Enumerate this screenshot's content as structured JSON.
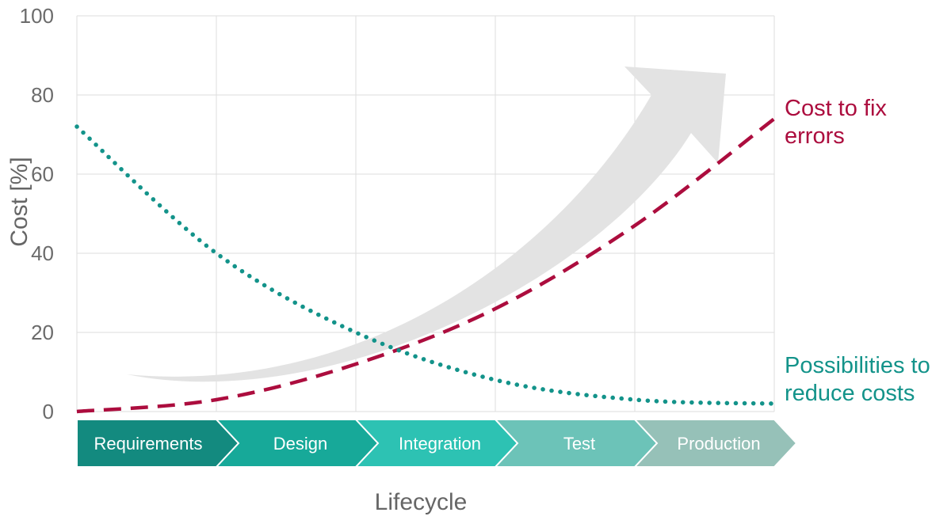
{
  "chart_data": {
    "type": "line",
    "title": "",
    "xlabel": "Lifecycle",
    "ylabel": "Cost [%]",
    "ylim": [
      0,
      100
    ],
    "yticks": [
      0,
      20,
      40,
      60,
      80,
      100
    ],
    "xlim": [
      0,
      5
    ],
    "grid": true,
    "legend": "direct labels at right",
    "stages": [
      "Requirements",
      "Design",
      "Integration",
      "Test",
      "Production"
    ],
    "stage_colors": [
      "#138a7f",
      "#17a999",
      "#2dc2b3",
      "#6cc3b8",
      "#96c1b8"
    ],
    "series": [
      {
        "name": "Cost to fix errors",
        "label_lines": [
          "Cost to fix",
          "errors"
        ],
        "color": "#ac0d3e",
        "style": "dashed",
        "x": [
          0,
          1,
          2,
          3,
          4,
          5
        ],
        "values": [
          0,
          3,
          12,
          26,
          47,
          74
        ]
      },
      {
        "name": "Possibilities to reduce costs",
        "label_lines": [
          "Possibilities to",
          "reduce costs"
        ],
        "color": "#13938a",
        "style": "dotted",
        "x": [
          0,
          1,
          2,
          3,
          4,
          5
        ],
        "values": [
          72,
          40,
          20,
          8,
          3,
          2
        ]
      }
    ],
    "annotation": {
      "type": "arrow",
      "color": "#e3e3e3",
      "meaning": "rising trend"
    }
  }
}
